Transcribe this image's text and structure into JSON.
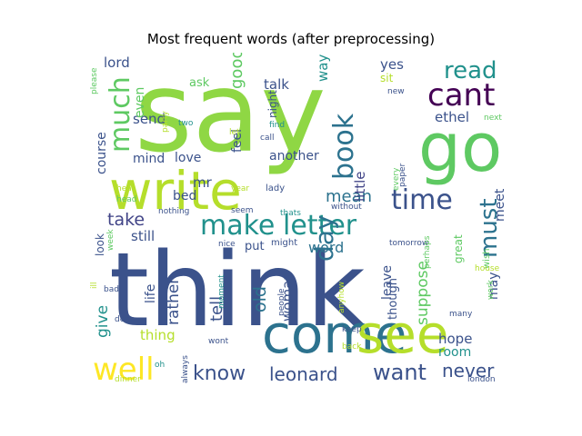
{
  "chart_data": {
    "type": "wordcloud",
    "title": "Most frequent words (after preprocessing)",
    "words": [
      {
        "text": "say",
        "size": 5,
        "color": "#8fd744"
      },
      {
        "text": "think",
        "size": 5,
        "color": "#3b528b"
      },
      {
        "text": "go",
        "size": 4,
        "color": "#5ec962"
      },
      {
        "text": "write",
        "size": 4,
        "color": "#b5de2b"
      },
      {
        "text": "come",
        "size": 4,
        "color": "#2c728e"
      },
      {
        "text": "see",
        "size": 4,
        "color": "#b5de2b"
      },
      {
        "text": "make",
        "size": 3,
        "color": "#21918c"
      },
      {
        "text": "letter",
        "size": 3,
        "color": "#21918c"
      },
      {
        "text": "cant",
        "size": 3,
        "color": "#440154"
      },
      {
        "text": "well",
        "size": 3,
        "color": "#fde725"
      },
      {
        "text": "much",
        "size": 3,
        "color": "#5ec962"
      },
      {
        "text": "book",
        "size": 3,
        "color": "#2c728e"
      },
      {
        "text": "time",
        "size": 3,
        "color": "#3b528b"
      },
      {
        "text": "must",
        "size": 3,
        "color": "#2c728e"
      },
      {
        "text": "day",
        "size": 3,
        "color": "#2c728e"
      },
      {
        "text": "read",
        "size": 3,
        "color": "#21918c"
      },
      {
        "text": "know",
        "size": 3,
        "color": "#3b528b"
      },
      {
        "text": "leonard",
        "size": 3,
        "color": "#3b528b"
      },
      {
        "text": "want",
        "size": 3,
        "color": "#3b528b"
      },
      {
        "text": "never",
        "size": 3,
        "color": "#3b528b"
      },
      {
        "text": "take",
        "size": 2,
        "color": "#414487"
      },
      {
        "text": "mean",
        "size": 2,
        "color": "#2c728e"
      },
      {
        "text": "old",
        "size": 2,
        "color": "#2c728e"
      },
      {
        "text": "tell",
        "size": 2,
        "color": "#3b528b"
      },
      {
        "text": "good",
        "size": 2,
        "color": "#5ec962"
      },
      {
        "text": "give",
        "size": 2,
        "color": "#21918c"
      },
      {
        "text": "rather",
        "size": 2,
        "color": "#3b528b"
      },
      {
        "text": "suppose",
        "size": 2,
        "color": "#5ec962"
      },
      {
        "text": "word",
        "size": 2,
        "color": "#2c728e"
      },
      {
        "text": "woman",
        "size": 2,
        "color": "#3b528b"
      },
      {
        "text": "lord",
        "size": 2,
        "color": "#3b528b"
      },
      {
        "text": "send",
        "size": 2,
        "color": "#3b528b"
      },
      {
        "text": "talk",
        "size": 2,
        "color": "#3b528b"
      },
      {
        "text": "way",
        "size": 2,
        "color": "#21918c"
      },
      {
        "text": "yes",
        "size": 2,
        "color": "#3b528b"
      },
      {
        "text": "ethel",
        "size": 2,
        "color": "#3b528b"
      },
      {
        "text": "little",
        "size": 2,
        "color": "#414487"
      },
      {
        "text": "course",
        "size": 2,
        "color": "#3b528b"
      },
      {
        "text": "even",
        "size": 2,
        "color": "#5ec962"
      },
      {
        "text": "mind",
        "size": 2,
        "color": "#3b528b"
      },
      {
        "text": "love",
        "size": 2,
        "color": "#3b528b"
      },
      {
        "text": "feel",
        "size": 2,
        "color": "#3b528b"
      },
      {
        "text": "another",
        "size": 2,
        "color": "#3b528b"
      },
      {
        "text": "mr",
        "size": 2,
        "color": "#3b528b"
      },
      {
        "text": "bed",
        "size": 2,
        "color": "#3b528b"
      },
      {
        "text": "still",
        "size": 2,
        "color": "#3b528b"
      },
      {
        "text": "life",
        "size": 2,
        "color": "#3b528b"
      },
      {
        "text": "thing",
        "size": 2,
        "color": "#b5de2b"
      },
      {
        "text": "hope",
        "size": 2,
        "color": "#3b528b"
      },
      {
        "text": "room",
        "size": 2,
        "color": "#21918c"
      },
      {
        "text": "meet",
        "size": 2,
        "color": "#3b528b"
      },
      {
        "text": "may",
        "size": 2,
        "color": "#3b528b"
      },
      {
        "text": "leave",
        "size": 2,
        "color": "#3b528b"
      },
      {
        "text": "though",
        "size": 2,
        "color": "#3b528b"
      },
      {
        "text": "look",
        "size": 2,
        "color": "#3b528b"
      },
      {
        "text": "put",
        "size": 2,
        "color": "#3b528b"
      },
      {
        "text": "ask",
        "size": 1,
        "color": "#5ec962"
      },
      {
        "text": "night",
        "size": 1,
        "color": "#3b528b"
      },
      {
        "text": "sit",
        "size": 1,
        "color": "#b5de2b"
      },
      {
        "text": "great",
        "size": 1,
        "color": "#5ec962"
      },
      {
        "text": "wish",
        "size": 1,
        "color": "#5ec962"
      },
      {
        "text": "might",
        "size": 1,
        "color": "#3b528b"
      },
      {
        "text": "nice",
        "size": 1,
        "color": "#3b528b"
      },
      {
        "text": "lady",
        "size": 1,
        "color": "#3b528b"
      },
      {
        "text": "call",
        "size": 1,
        "color": "#3b528b"
      },
      {
        "text": "find",
        "size": 1,
        "color": "#21918c"
      },
      {
        "text": "without",
        "size": 1,
        "color": "#3b528b"
      },
      {
        "text": "let",
        "size": 1,
        "color": "#b5de2b"
      },
      {
        "text": "two",
        "size": 1,
        "color": "#21918c"
      },
      {
        "text": "party",
        "size": 1,
        "color": "#b5de2b"
      },
      {
        "text": "please",
        "size": 1,
        "color": "#5ec962"
      },
      {
        "text": "new",
        "size": 1,
        "color": "#3b528b"
      },
      {
        "text": "next",
        "size": 1,
        "color": "#5ec962"
      },
      {
        "text": "paper",
        "size": 1,
        "color": "#3b528b"
      },
      {
        "text": "every",
        "size": 1,
        "color": "#5ec962"
      },
      {
        "text": "year",
        "size": 1,
        "color": "#b5de2b"
      },
      {
        "text": "thats",
        "size": 1,
        "color": "#21918c"
      },
      {
        "text": "nothing",
        "size": 1,
        "color": "#3b528b"
      },
      {
        "text": "seem",
        "size": 1,
        "color": "#3b528b"
      },
      {
        "text": "tomorrow",
        "size": 1,
        "color": "#3b528b"
      },
      {
        "text": "house",
        "size": 1,
        "color": "#b5de2b"
      },
      {
        "text": "perhaps",
        "size": 1,
        "color": "#5ec962"
      },
      {
        "text": "work",
        "size": 1,
        "color": "#5ec962"
      },
      {
        "text": "hear",
        "size": 1,
        "color": "#b5de2b"
      },
      {
        "text": "head",
        "size": 1,
        "color": "#5ec962"
      },
      {
        "text": "week",
        "size": 1,
        "color": "#5ec962"
      },
      {
        "text": "ill",
        "size": 1,
        "color": "#b5de2b"
      },
      {
        "text": "bad",
        "size": 1,
        "color": "#3b528b"
      },
      {
        "text": "moment",
        "size": 1,
        "color": "#21918c"
      },
      {
        "text": "people",
        "size": 1,
        "color": "#3b528b"
      },
      {
        "text": "anyhow",
        "size": 1,
        "color": "#b5de2b"
      },
      {
        "text": "keep",
        "size": 1,
        "color": "#3b528b"
      },
      {
        "text": "many",
        "size": 1,
        "color": "#3b528b"
      },
      {
        "text": "back",
        "size": 1,
        "color": "#b5de2b"
      },
      {
        "text": "dear",
        "size": 1,
        "color": "#3b528b"
      },
      {
        "text": "wont",
        "size": 1,
        "color": "#3b528b"
      },
      {
        "text": "always",
        "size": 1,
        "color": "#3b528b"
      },
      {
        "text": "oh",
        "size": 1,
        "color": "#21918c"
      },
      {
        "text": "dinner",
        "size": 1,
        "color": "#b5de2b"
      },
      {
        "text": "london",
        "size": 1,
        "color": "#3b528b"
      }
    ]
  }
}
